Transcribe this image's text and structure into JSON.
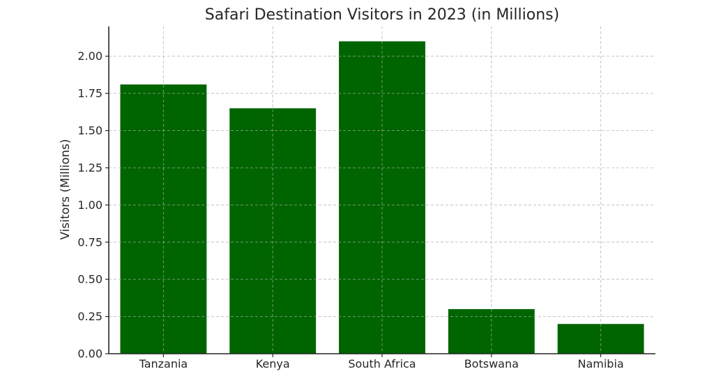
{
  "chart_data": {
    "type": "bar",
    "title": "Safari Destination Visitors in 2023 (in Millions)",
    "xlabel": "",
    "ylabel": "Visitors (Millions)",
    "categories": [
      "Tanzania",
      "Kenya",
      "South Africa",
      "Botswana",
      "Namibia"
    ],
    "values": [
      1.81,
      1.65,
      2.1,
      0.3,
      0.2
    ],
    "ylim": [
      0,
      2.2
    ],
    "yticks": [
      0.0,
      0.25,
      0.5,
      0.75,
      1.0,
      1.25,
      1.5,
      1.75,
      2.0
    ],
    "ytick_labels": [
      "0.00",
      "0.25",
      "0.50",
      "0.75",
      "1.00",
      "1.25",
      "1.50",
      "1.75",
      "2.00"
    ],
    "bar_color": "#006400",
    "grid": true,
    "legend": "none"
  }
}
